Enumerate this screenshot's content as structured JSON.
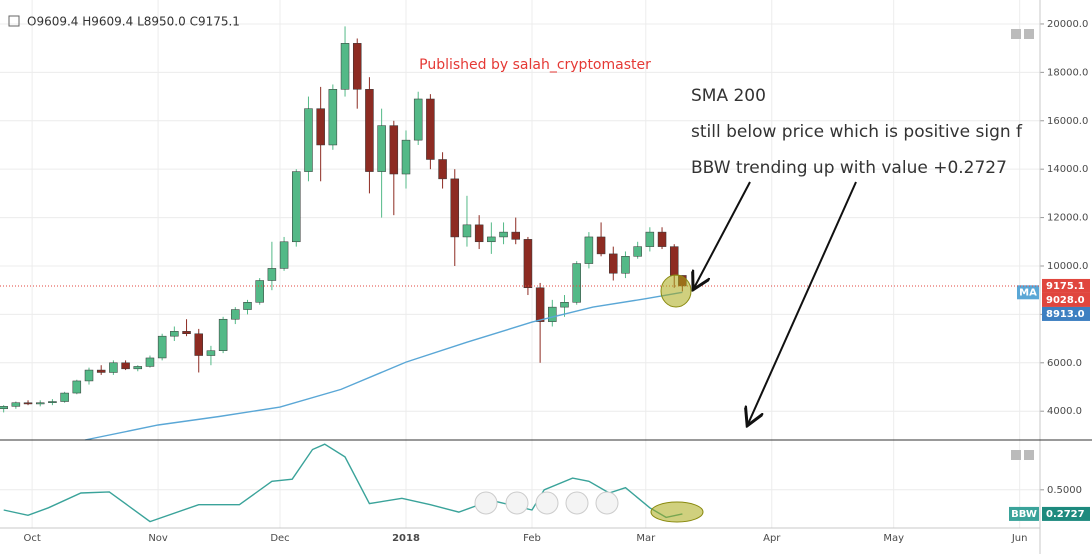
{
  "chart_data": [
    {
      "type": "candlestick",
      "ohlc_label": "O9609.4 H9609.4 L8950.0 C9175.1",
      "publisher": "Published by salah_cryptomaster",
      "annotations": [
        "SMA 200",
        "still below price which is positive sign f",
        "BBW trending up with value +0.2727"
      ],
      "x": [
        -7,
        -4,
        -1,
        2,
        5,
        8,
        11,
        14,
        17,
        20,
        23,
        26,
        29,
        32,
        35,
        38,
        41,
        44,
        47,
        50,
        53,
        56,
        59,
        62,
        65,
        68,
        71,
        74,
        77,
        80,
        83,
        86,
        89,
        92,
        95,
        98,
        101,
        104,
        107,
        110,
        113,
        116,
        119,
        122,
        125,
        128,
        131,
        134,
        137,
        140,
        143,
        146,
        149,
        152,
        155,
        158,
        160
      ],
      "open": [
        4100,
        4200,
        4350,
        4300,
        4350,
        4400,
        4750,
        5250,
        5700,
        5600,
        6000,
        5750,
        5850,
        6200,
        7100,
        7300,
        7200,
        6300,
        6500,
        7800,
        8200,
        8500,
        9400,
        9900,
        11000,
        13900,
        16500,
        15000,
        17300,
        19200,
        17300,
        13900,
        15800,
        13800,
        15200,
        16900,
        14400,
        13600,
        11200,
        11700,
        11000,
        11200,
        11400,
        11100,
        9100,
        7700,
        8300,
        8500,
        10100,
        11200,
        10500,
        9700,
        10400,
        10800,
        11400,
        10800,
        9609.4
      ],
      "high": [
        4250,
        4400,
        4450,
        4450,
        4500,
        4800,
        5300,
        5800,
        5900,
        6100,
        6100,
        5900,
        6300,
        7200,
        7500,
        7800,
        7400,
        6700,
        7900,
        8300,
        8600,
        9500,
        11000,
        11200,
        14000,
        17000,
        17400,
        17500,
        19900,
        19400,
        17800,
        16500,
        16000,
        15600,
        17200,
        17100,
        14700,
        14000,
        12900,
        12100,
        11800,
        11800,
        12000,
        11200,
        9300,
        8600,
        8800,
        10200,
        11400,
        11800,
        10800,
        10600,
        11000,
        11600,
        11600,
        10900,
        9609.4
      ],
      "low": [
        3950,
        4100,
        4250,
        4200,
        4250,
        4350,
        4700,
        5100,
        5500,
        5500,
        5700,
        5650,
        5800,
        6100,
        6900,
        7100,
        5600,
        5900,
        6400,
        7600,
        8000,
        8400,
        9000,
        9800,
        10800,
        13500,
        13500,
        14800,
        17000,
        16500,
        13000,
        12000,
        12100,
        13200,
        15000,
        14000,
        13200,
        10000,
        10800,
        10700,
        10500,
        10900,
        10900,
        8800,
        6000,
        7500,
        7900,
        8400,
        9900,
        10400,
        9400,
        9500,
        10300,
        10600,
        10700,
        9100,
        8950.0
      ],
      "close": [
        4200,
        4350,
        4300,
        4350,
        4400,
        4750,
        5250,
        5700,
        5600,
        6000,
        5750,
        5850,
        6200,
        7100,
        7300,
        7200,
        6300,
        6500,
        7800,
        8200,
        8500,
        9400,
        9900,
        11000,
        13900,
        16500,
        15000,
        17300,
        19200,
        17300,
        13900,
        15800,
        13800,
        15200,
        16900,
        14400,
        13600,
        11200,
        11700,
        11000,
        11200,
        11400,
        11100,
        9100,
        7700,
        8300,
        8500,
        10100,
        11200,
        10500,
        9700,
        10400,
        10800,
        11400,
        10800,
        9609.4,
        9175.1
      ],
      "up_color": "#53b987",
      "down_color": "#8d2b22",
      "xlim": [
        -7.9,
        248
      ],
      "xticks": [
        {
          "value": 0,
          "label": "Oct"
        },
        {
          "value": 31,
          "label": "Nov"
        },
        {
          "value": 61,
          "label": "Dec"
        },
        {
          "value": 92,
          "label": "2018"
        },
        {
          "value": 123,
          "label": "Feb"
        },
        {
          "value": 151,
          "label": "Mar"
        },
        {
          "value": 182,
          "label": "Apr"
        },
        {
          "value": 212,
          "label": "May"
        },
        {
          "value": 243,
          "label": "Jun"
        }
      ],
      "ylim": [
        2810,
        20990
      ],
      "yticks": [
        {
          "value": 4000,
          "label": "4000.0"
        },
        {
          "value": 6000,
          "label": "6000.0"
        },
        {
          "value": 8000,
          "label": "8000.0"
        },
        {
          "value": 10000,
          "label": "10000.0"
        },
        {
          "value": 12000,
          "label": "12000.0"
        },
        {
          "value": 14000,
          "label": "14000.0"
        },
        {
          "value": 16000,
          "label": "16000.0"
        },
        {
          "value": 18000,
          "label": "18000.0"
        },
        {
          "value": 20000,
          "label": "20000.0"
        }
      ],
      "grid": true,
      "series": [
        {
          "name": "MA",
          "color": "#5aa7d6",
          "x": [
            13,
            31,
            46,
            61,
            76,
            92,
            107,
            123,
            138,
            151,
            160
          ],
          "values": [
            2810,
            3430,
            3780,
            4170,
            4900,
            6030,
            6850,
            7680,
            8300,
            8650,
            8913
          ]
        }
      ],
      "price_labels": [
        {
          "value": 9175.1,
          "label": "9175.1",
          "color": "#e0463e"
        },
        {
          "value": 9028,
          "label": "9028.0",
          "color": "#e0463e"
        },
        {
          "value": 8913,
          "label": "8913.0",
          "color": "#3d7fc1"
        }
      ]
    },
    {
      "type": "line",
      "xlim": [
        -7.9,
        248
      ],
      "ylim": [
        0.14,
        0.96
      ],
      "yticks": [
        {
          "value": 0.5,
          "label": "0.5000"
        }
      ],
      "series": [
        {
          "name": "BBW",
          "color": "#3aa39a",
          "x": [
            -7,
            -1,
            4,
            12,
            19,
            29,
            41,
            51,
            59,
            64,
            69,
            72,
            77,
            83,
            91,
            98,
            105,
            113,
            123,
            126,
            133,
            137,
            142,
            146,
            152,
            156,
            160
          ],
          "values": [
            0.31,
            0.26,
            0.33,
            0.47,
            0.48,
            0.2,
            0.36,
            0.36,
            0.58,
            0.6,
            0.88,
            0.93,
            0.81,
            0.37,
            0.42,
            0.36,
            0.29,
            0.4,
            0.31,
            0.5,
            0.61,
            0.58,
            0.47,
            0.52,
            0.33,
            0.24,
            0.2727
          ]
        }
      ],
      "price_labels": [
        {
          "value": 0.2727,
          "label": "0.2727",
          "color": "#1d8a7e"
        }
      ]
    }
  ]
}
